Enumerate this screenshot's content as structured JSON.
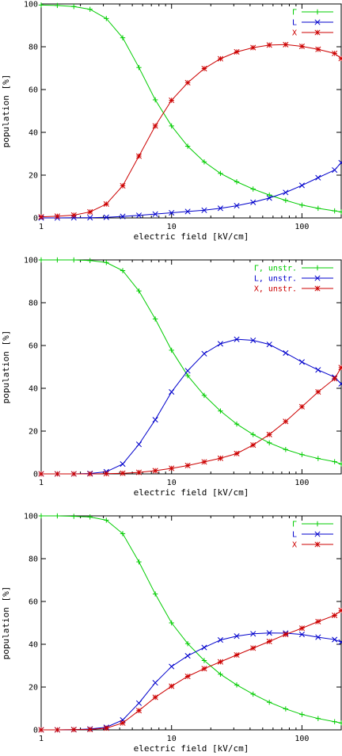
{
  "chart_data": [
    {
      "type": "line",
      "x_scale": "log",
      "xlim": [
        1,
        200
      ],
      "ylim": [
        0,
        100
      ],
      "xlabel": "electric field [kV/cm]",
      "ylabel": "population [%]",
      "x_ticks": [
        1,
        10,
        100
      ],
      "x_tick_labels": [
        "1",
        "10",
        "100"
      ],
      "y_ticks": [
        0,
        20,
        40,
        60,
        80,
        100
      ],
      "y_tick_labels": [
        "0",
        "20",
        "40",
        "60",
        "80",
        "100"
      ],
      "legend_position": "top-right",
      "series": [
        {
          "name": "Γ",
          "color": "#00cc00",
          "marker": "plus",
          "x": [
            1,
            1.33,
            1.78,
            2.37,
            3.16,
            4.22,
            5.62,
            7.5,
            10,
            13.3,
            17.8,
            23.7,
            31.6,
            42.2,
            56.2,
            75,
            100,
            133,
            178,
            200
          ],
          "y": [
            99.5,
            99.3,
            98.8,
            97.5,
            93.2,
            84.2,
            70.3,
            55.2,
            43.0,
            33.5,
            26.2,
            20.8,
            16.9,
            13.5,
            10.7,
            8.2,
            6.0,
            4.5,
            3.3,
            2.8
          ]
        },
        {
          "name": "L",
          "color": "#0000cc",
          "marker": "x",
          "x": [
            1,
            1.33,
            1.78,
            2.37,
            3.16,
            4.22,
            5.62,
            7.5,
            10,
            13.3,
            17.8,
            23.7,
            31.6,
            42.2,
            56.2,
            75,
            100,
            133,
            178,
            200
          ],
          "y": [
            0,
            0,
            0.1,
            0.1,
            0.3,
            0.7,
            1.2,
            1.8,
            2.4,
            3.0,
            3.6,
            4.5,
            5.7,
            7.3,
            9.3,
            11.9,
            15.2,
            18.8,
            22.4,
            25.8
          ]
        },
        {
          "name": "X",
          "color": "#cc0000",
          "marker": "star",
          "x": [
            1,
            1.33,
            1.78,
            2.37,
            3.16,
            4.22,
            5.62,
            7.5,
            10,
            13.3,
            17.8,
            23.7,
            31.6,
            42.2,
            56.2,
            75,
            100,
            133,
            178,
            200
          ],
          "y": [
            0.5,
            0.8,
            1.3,
            2.8,
            6.5,
            15.0,
            28.9,
            43.0,
            55.0,
            63.2,
            69.8,
            74.4,
            77.6,
            79.6,
            80.8,
            81.0,
            80.2,
            78.8,
            76.9,
            74.5
          ]
        }
      ]
    },
    {
      "type": "line",
      "x_scale": "log",
      "xlim": [
        1,
        200
      ],
      "ylim": [
        0,
        100
      ],
      "xlabel": "electric field [kV/cm]",
      "ylabel": "population [%]",
      "x_ticks": [
        1,
        10,
        100
      ],
      "x_tick_labels": [
        "1",
        "10",
        "100"
      ],
      "y_ticks": [
        0,
        20,
        40,
        60,
        80,
        100
      ],
      "y_tick_labels": [
        "0",
        "20",
        "40",
        "60",
        "80",
        "100"
      ],
      "legend_position": "top-right",
      "series": [
        {
          "name": "Γ, unstr.",
          "color": "#00cc00",
          "marker": "plus",
          "x": [
            1,
            1.33,
            1.78,
            2.37,
            3.16,
            4.22,
            5.62,
            7.5,
            10,
            13.3,
            17.8,
            23.7,
            31.6,
            42.2,
            56.2,
            75,
            100,
            133,
            178,
            200
          ],
          "y": [
            100,
            100,
            100,
            99.7,
            98.8,
            95.0,
            85.5,
            72.4,
            57.8,
            45.9,
            36.7,
            29.4,
            23.3,
            18.4,
            14.5,
            11.4,
            9.0,
            7.2,
            5.7,
            4.6
          ]
        },
        {
          "name": "L, unstr.",
          "color": "#0000cc",
          "marker": "x",
          "x": [
            1,
            1.33,
            1.78,
            2.37,
            3.16,
            4.22,
            5.62,
            7.5,
            10,
            13.3,
            17.8,
            23.7,
            31.6,
            42.2,
            56.2,
            75,
            100,
            133,
            178,
            200
          ],
          "y": [
            0,
            0,
            0,
            0.2,
            1.0,
            4.6,
            13.8,
            25.3,
            38.3,
            48.2,
            56.2,
            60.8,
            62.9,
            62.4,
            60.5,
            56.5,
            52.3,
            48.6,
            45.2,
            42.1
          ]
        },
        {
          "name": "X, unstr.",
          "color": "#cc0000",
          "marker": "star",
          "x": [
            1,
            1.33,
            1.78,
            2.37,
            3.16,
            4.22,
            5.62,
            7.5,
            10,
            13.3,
            17.8,
            23.7,
            31.6,
            42.2,
            56.2,
            75,
            100,
            133,
            178,
            200
          ],
          "y": [
            0,
            0,
            0,
            0,
            0.1,
            0.3,
            0.7,
            1.5,
            2.6,
            3.9,
            5.6,
            7.3,
            9.5,
            13.5,
            18.4,
            24.5,
            31.4,
            38.3,
            44.5,
            49.7
          ]
        }
      ]
    },
    {
      "type": "line",
      "x_scale": "log",
      "xlim": [
        1,
        200
      ],
      "ylim": [
        0,
        100
      ],
      "xlabel": "electric field [kV/cm]",
      "ylabel": "population [%]",
      "x_ticks": [
        1,
        10,
        100
      ],
      "x_tick_labels": [
        "1",
        "10",
        "100"
      ],
      "y_ticks": [
        0,
        20,
        40,
        60,
        80,
        100
      ],
      "y_tick_labels": [
        "0",
        "20",
        "40",
        "60",
        "80",
        "100"
      ],
      "legend_position": "top-right",
      "series": [
        {
          "name": "Γ",
          "color": "#00cc00",
          "marker": "plus",
          "x": [
            1,
            1.33,
            1.78,
            2.37,
            3.16,
            4.22,
            5.62,
            7.5,
            10,
            13.3,
            17.8,
            23.7,
            31.6,
            42.2,
            56.2,
            75,
            100,
            133,
            178,
            200
          ],
          "y": [
            100,
            100,
            99.8,
            99.5,
            98.0,
            91.7,
            78.5,
            63.5,
            50.0,
            40.3,
            32.4,
            26.0,
            21.0,
            16.7,
            12.9,
            9.8,
            7.2,
            5.3,
            3.8,
            3.2
          ]
        },
        {
          "name": "L",
          "color": "#0000cc",
          "marker": "x",
          "x": [
            1,
            1.33,
            1.78,
            2.37,
            3.16,
            4.22,
            5.62,
            7.5,
            10,
            13.3,
            17.8,
            23.7,
            31.6,
            42.2,
            56.2,
            75,
            100,
            133,
            178,
            200
          ],
          "y": [
            0,
            0,
            0.1,
            0.4,
            1.2,
            4.6,
            12.5,
            22.0,
            29.6,
            34.6,
            38.5,
            42.0,
            43.8,
            44.9,
            45.3,
            45.2,
            44.6,
            43.3,
            42.2,
            41.0
          ]
        },
        {
          "name": "X",
          "color": "#cc0000",
          "marker": "star",
          "x": [
            1,
            1.33,
            1.78,
            2.37,
            3.16,
            4.22,
            5.62,
            7.5,
            10,
            13.3,
            17.8,
            23.7,
            31.6,
            42.2,
            56.2,
            75,
            100,
            133,
            178,
            200
          ],
          "y": [
            0,
            0,
            0.1,
            0.2,
            0.8,
            3.2,
            9.0,
            15.2,
            20.4,
            25.0,
            28.6,
            31.8,
            35.0,
            38.2,
            41.3,
            44.6,
            47.5,
            50.6,
            53.5,
            55.8
          ]
        }
      ]
    }
  ]
}
